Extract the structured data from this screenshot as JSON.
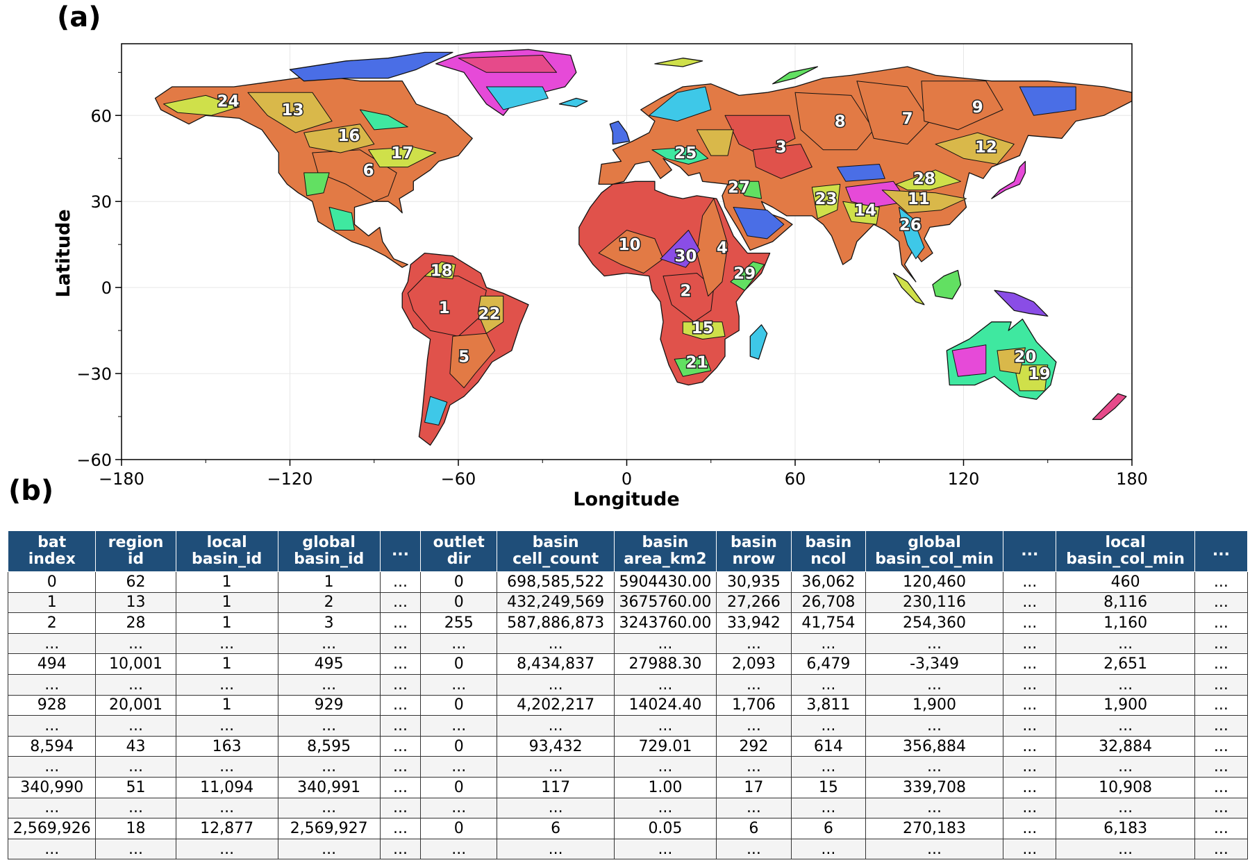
{
  "panel_a_label": "(a)",
  "panel_b_label": "(b)",
  "map": {
    "xlabel": "Longitude",
    "ylabel": "Latitude",
    "xlim": [
      -180,
      180
    ],
    "ylim": [
      -60,
      85
    ],
    "xticks": [
      {
        "v": -180,
        "t": "−180"
      },
      {
        "v": -120,
        "t": "−120"
      },
      {
        "v": -60,
        "t": "−60"
      },
      {
        "v": 0,
        "t": "0"
      },
      {
        "v": 60,
        "t": "60"
      },
      {
        "v": 120,
        "t": "120"
      },
      {
        "v": 180,
        "t": "180"
      }
    ],
    "yticks": [
      {
        "v": -60,
        "t": "−60"
      },
      {
        "v": -30,
        "t": "−30"
      },
      {
        "v": 0,
        "t": "0"
      },
      {
        "v": 30,
        "t": "30"
      },
      {
        "v": 60,
        "t": "60"
      }
    ],
    "grid": true,
    "basin_palette": [
      "#e0524b",
      "#e27a45",
      "#d9b84a",
      "#cfe04a",
      "#62e062",
      "#3fe8a0",
      "#3ec8e8",
      "#4a6ee6",
      "#8a4de6",
      "#e64ad8",
      "#e64a8a"
    ],
    "basin_labels": [
      {
        "n": "1",
        "lon": -65,
        "lat": -7
      },
      {
        "n": "2",
        "lon": 21,
        "lat": -1
      },
      {
        "n": "3",
        "lon": 55,
        "lat": 49
      },
      {
        "n": "4",
        "lon": 34,
        "lat": 14
      },
      {
        "n": "5",
        "lon": -58,
        "lat": -24
      },
      {
        "n": "6",
        "lon": -92,
        "lat": 41
      },
      {
        "n": "7",
        "lon": 100,
        "lat": 59
      },
      {
        "n": "8",
        "lon": 76,
        "lat": 58
      },
      {
        "n": "9",
        "lon": 125,
        "lat": 63
      },
      {
        "n": "10",
        "lon": 1,
        "lat": 15
      },
      {
        "n": "11",
        "lon": 104,
        "lat": 31
      },
      {
        "n": "12",
        "lon": 128,
        "lat": 49
      },
      {
        "n": "13",
        "lon": -119,
        "lat": 62
      },
      {
        "n": "14",
        "lon": 85,
        "lat": 27
      },
      {
        "n": "15",
        "lon": 27,
        "lat": -14
      },
      {
        "n": "16",
        "lon": -99,
        "lat": 53
      },
      {
        "n": "17",
        "lon": -80,
        "lat": 47
      },
      {
        "n": "18",
        "lon": -66,
        "lat": 6
      },
      {
        "n": "19",
        "lon": 147,
        "lat": -30
      },
      {
        "n": "20",
        "lon": 142,
        "lat": -24
      },
      {
        "n": "21",
        "lon": 25,
        "lat": -26
      },
      {
        "n": "22",
        "lon": -49,
        "lat": -9
      },
      {
        "n": "23",
        "lon": 71,
        "lat": 31
      },
      {
        "n": "24",
        "lon": -142,
        "lat": 65
      },
      {
        "n": "25",
        "lon": 21,
        "lat": 47
      },
      {
        "n": "26",
        "lon": 101,
        "lat": 22
      },
      {
        "n": "27",
        "lon": 40,
        "lat": 35
      },
      {
        "n": "28",
        "lon": 106,
        "lat": 38
      },
      {
        "n": "29",
        "lon": 42,
        "lat": 5
      },
      {
        "n": "30",
        "lon": 21,
        "lat": 11
      }
    ]
  },
  "table": {
    "headers": [
      "bat\nindex",
      "region\nid",
      "local\nbasin_id",
      "global\nbasin_id",
      "...",
      "outlet\ndir",
      "basin\ncell_count",
      "basin\narea_km2",
      "basin\nnrow",
      "basin\nncol",
      "global\nbasin_col_min",
      "...",
      "local\nbasin_col_min",
      "..."
    ],
    "rows": [
      [
        "0",
        "62",
        "1",
        "1",
        "...",
        "0",
        "698,585,522",
        "5904430.00",
        "30,935",
        "36,062",
        "120,460",
        "...",
        "460",
        "..."
      ],
      [
        "1",
        "13",
        "1",
        "2",
        "...",
        "0",
        "432,249,569",
        "3675760.00",
        "27,266",
        "26,708",
        "230,116",
        "...",
        "8,116",
        "..."
      ],
      [
        "2",
        "28",
        "1",
        "3",
        "...",
        "255",
        "587,886,873",
        "3243760.00",
        "33,942",
        "41,754",
        "254,360",
        "...",
        "1,160",
        "..."
      ],
      [
        "...",
        "...",
        "...",
        "...",
        "...",
        "...",
        "...",
        "...",
        "...",
        "...",
        "...",
        "...",
        "...",
        "..."
      ],
      [
        "494",
        "10,001",
        "1",
        "495",
        "...",
        "0",
        "8,434,837",
        "27988.30",
        "2,093",
        "6,479",
        "-3,349",
        "...",
        "2,651",
        "..."
      ],
      [
        "...",
        "...",
        "...",
        "...",
        "...",
        "...",
        "...",
        "...",
        "...",
        "...",
        "...",
        "...",
        "...",
        "..."
      ],
      [
        "928",
        "20,001",
        "1",
        "929",
        "...",
        "0",
        "4,202,217",
        "14024.40",
        "1,706",
        "3,811",
        "1,900",
        "...",
        "1,900",
        "..."
      ],
      [
        "...",
        "...",
        "...",
        "...",
        "...",
        "...",
        "...",
        "...",
        "...",
        "...",
        "...",
        "...",
        "...",
        "..."
      ],
      [
        "8,594",
        "43",
        "163",
        "8,595",
        "...",
        "0",
        "93,432",
        "729.01",
        "292",
        "614",
        "356,884",
        "...",
        "32,884",
        "..."
      ],
      [
        "...",
        "...",
        "...",
        "...",
        "...",
        "...",
        "...",
        "...",
        "...",
        "...",
        "...",
        "...",
        "...",
        "..."
      ],
      [
        "340,990",
        "51",
        "11,094",
        "340,991",
        "...",
        "0",
        "117",
        "1.00",
        "17",
        "15",
        "339,708",
        "...",
        "10,908",
        "..."
      ],
      [
        "...",
        "...",
        "...",
        "...",
        "...",
        "...",
        "...",
        "...",
        "...",
        "...",
        "...",
        "...",
        "...",
        "..."
      ],
      [
        "2,569,926",
        "18",
        "12,877",
        "2,569,927",
        "...",
        "0",
        "6",
        "0.05",
        "6",
        "6",
        "270,183",
        "...",
        "6,183",
        "..."
      ],
      [
        "...",
        "...",
        "...",
        "...",
        "...",
        "...",
        "...",
        "...",
        "...",
        "...",
        "...",
        "...",
        "...",
        "..."
      ]
    ]
  }
}
